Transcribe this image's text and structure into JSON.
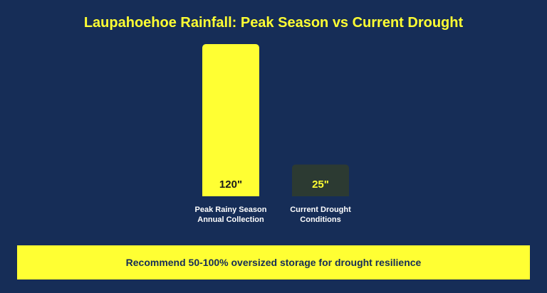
{
  "chart_data": {
    "type": "bar",
    "title": "Laupahoehoe Rainfall: Peak Season vs Current Drought",
    "categories": [
      "Peak Rainy Season\nAnnual Collection",
      "Current Drought\nConditions"
    ],
    "values": [
      120,
      25
    ],
    "value_labels": [
      "120\"",
      "25\""
    ],
    "bar_colors": [
      "#ffff33",
      "#2c3a32"
    ],
    "value_label_colors": [
      "#1a1a1a",
      "#ffff33"
    ],
    "xlabel": "",
    "ylabel": "",
    "ylim": [
      0,
      120
    ],
    "grid": false
  },
  "recommendation": "Recommend 50-100% oversized storage for drought resilience"
}
